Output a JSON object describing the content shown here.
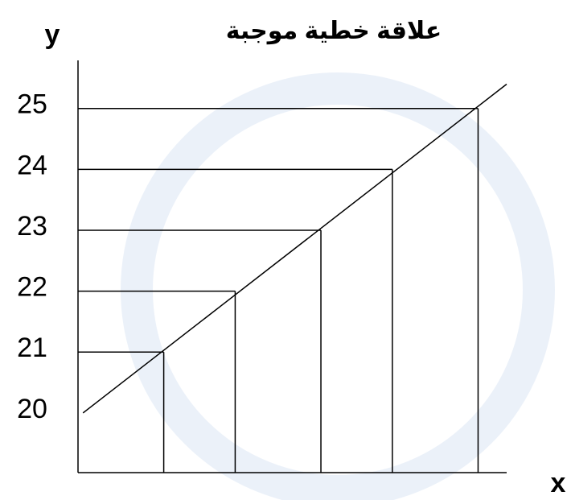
{
  "chart_data": {
    "type": "line",
    "title": "علاقة خطية موجبة",
    "y_label": "y",
    "x_label": "x",
    "x": [
      1.2,
      2.2,
      3.4,
      4.4,
      5.6
    ],
    "values": [
      21,
      22,
      23,
      24,
      25
    ],
    "trend_line": {
      "x": [
        0.07,
        6.0
      ],
      "values": [
        20,
        25.4
      ]
    },
    "xlim": [
      0,
      6
    ],
    "ylim": [
      19.02,
      25.79
    ],
    "yticks": [
      20,
      21,
      22,
      23,
      24,
      25
    ],
    "color": "#000000",
    "guide_lines": true
  }
}
